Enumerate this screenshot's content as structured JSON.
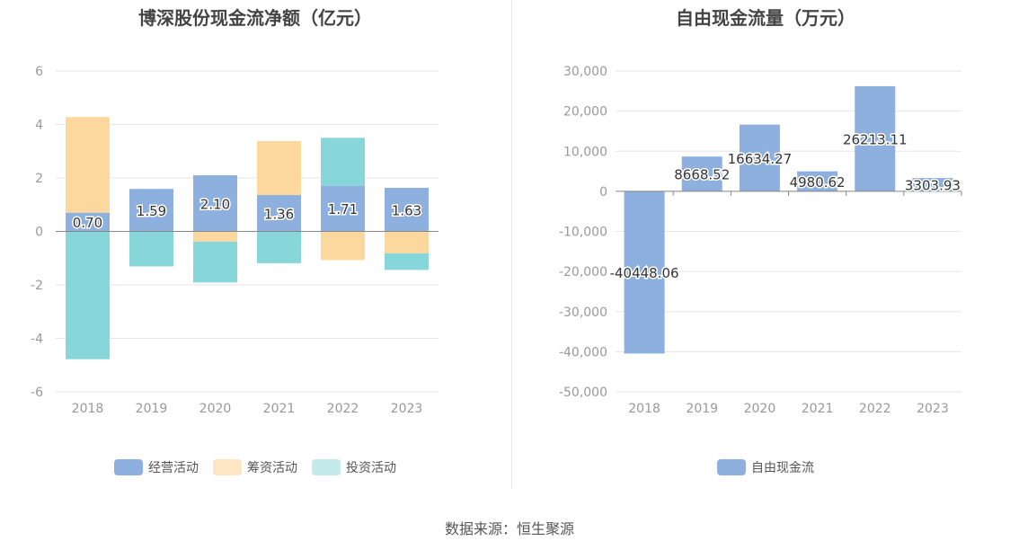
{
  "colors": {
    "operating": "#8eb0de",
    "financing": "#fdd89e",
    "investing": "#87d6d9",
    "fcf": "#8eb0de"
  },
  "chart_data": [
    {
      "type": "bar",
      "stacked": true,
      "title": "博深股份现金流净额（亿元）",
      "categories": [
        "2018",
        "2019",
        "2020",
        "2021",
        "2022",
        "2023"
      ],
      "series": [
        {
          "name": "经营活动",
          "values": [
            0.7,
            1.59,
            2.1,
            1.36,
            1.71,
            1.63
          ],
          "labels": [
            "0.70",
            "1.59",
            "2.10",
            "1.36",
            "1.71",
            "1.63"
          ]
        },
        {
          "name": "筹资活动",
          "values": [
            3.58,
            0.0,
            -0.38,
            2.02,
            -1.07,
            -0.82
          ]
        },
        {
          "name": "投资活动",
          "values": [
            -4.78,
            -1.31,
            -1.53,
            -1.19,
            1.79,
            -0.62
          ]
        }
      ],
      "ylim": [
        -6,
        6
      ],
      "yticks": [
        "6",
        "4",
        "2",
        "0",
        "-2",
        "-4",
        "-6"
      ],
      "ytick_values": [
        6,
        4,
        2,
        0,
        -2,
        -4,
        -6
      ],
      "legend": [
        "经营活动",
        "筹资活动",
        "投资活动"
      ]
    },
    {
      "type": "bar",
      "title": "自由现金流量（万元）",
      "categories": [
        "2018",
        "2019",
        "2020",
        "2021",
        "2022",
        "2023"
      ],
      "series": [
        {
          "name": "自由现金流",
          "values": [
            -40448.06,
            8668.52,
            16634.27,
            4980.62,
            26213.11,
            3303.93
          ],
          "labels": [
            "-40448.06",
            "8668.52",
            "16634.27",
            "4980.62",
            "26213.11",
            "3303.93"
          ]
        }
      ],
      "ylim": [
        -50000,
        30000
      ],
      "yticks": [
        "30,000",
        "20,000",
        "10,000",
        "0",
        "-10,000",
        "-20,000",
        "-30,000",
        "-40,000",
        "-50,000"
      ],
      "ytick_values": [
        30000,
        20000,
        10000,
        0,
        -10000,
        -20000,
        -30000,
        -40000,
        -50000
      ],
      "legend": [
        "自由现金流"
      ]
    }
  ],
  "footer": "数据来源：恒生聚源"
}
